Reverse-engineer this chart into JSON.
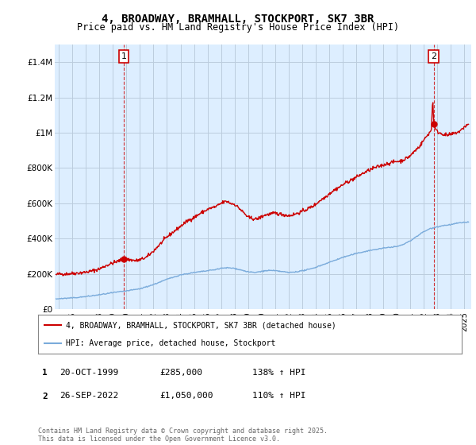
{
  "title": "4, BROADWAY, BRAMHALL, STOCKPORT, SK7 3BR",
  "subtitle": "Price paid vs. HM Land Registry's House Price Index (HPI)",
  "ylabel_ticks": [
    "£0",
    "£200K",
    "£400K",
    "£600K",
    "£800K",
    "£1M",
    "£1.2M",
    "£1.4M"
  ],
  "ytick_values": [
    0,
    200000,
    400000,
    600000,
    800000,
    1000000,
    1200000,
    1400000
  ],
  "ylim": [
    0,
    1500000
  ],
  "xlim_start": 1994.7,
  "xlim_end": 2025.5,
  "red_line_color": "#cc0000",
  "blue_line_color": "#7aabdb",
  "chart_bg_color": "#ddeeff",
  "sale1_date": 1999.8,
  "sale1_price": 285000,
  "sale2_date": 2022.73,
  "sale2_price": 1050000,
  "annotation1_label": "1",
  "annotation2_label": "2",
  "legend_label_red": "4, BROADWAY, BRAMHALL, STOCKPORT, SK7 3BR (detached house)",
  "legend_label_blue": "HPI: Average price, detached house, Stockport",
  "table_row1": [
    "1",
    "20-OCT-1999",
    "£285,000",
    "138% ↑ HPI"
  ],
  "table_row2": [
    "2",
    "26-SEP-2022",
    "£1,050,000",
    "110% ↑ HPI"
  ],
  "footer": "Contains HM Land Registry data © Crown copyright and database right 2025.\nThis data is licensed under the Open Government Licence v3.0.",
  "background_color": "#ffffff",
  "grid_color": "#bbccdd",
  "xtick_years": [
    1995,
    1996,
    1997,
    1998,
    1999,
    2000,
    2001,
    2002,
    2003,
    2004,
    2005,
    2006,
    2007,
    2008,
    2009,
    2010,
    2011,
    2012,
    2013,
    2014,
    2015,
    2016,
    2017,
    2018,
    2019,
    2020,
    2021,
    2022,
    2023,
    2024,
    2025
  ]
}
